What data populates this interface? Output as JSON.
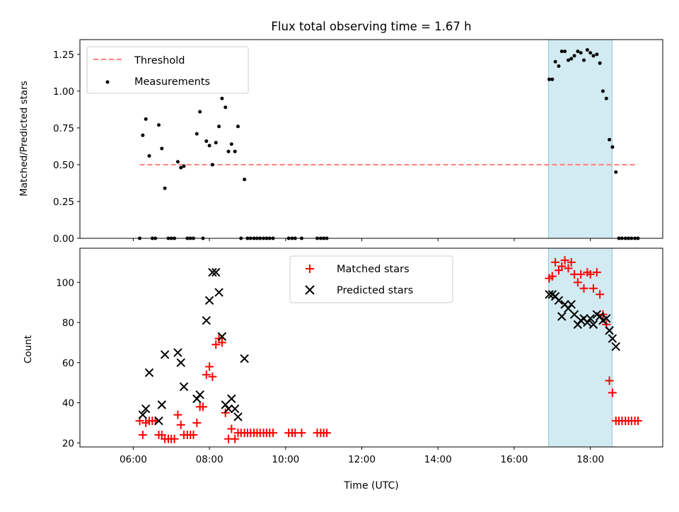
{
  "figure": {
    "title": "Flux total observing time = 1.67 h",
    "xlabel": "Time (UTC)",
    "highlight_span_hours": [
      16.9,
      18.57
    ],
    "highlight_color": "#add8e6"
  },
  "chart_data": [
    {
      "type": "scatter",
      "title": "Flux total observing time = 1.67 h",
      "xlabel": "",
      "ylabel": "Matched/Predicted stars",
      "xlim_hours": [
        4.6,
        19.9
      ],
      "ylim": [
        0,
        1.35
      ],
      "yticks": [
        0.0,
        0.25,
        0.5,
        0.75,
        1.0,
        1.25
      ],
      "yticklabels": [
        "0.00",
        "0.25",
        "0.50",
        "0.75",
        "1.00",
        "1.25"
      ],
      "legend_position": "upper-left",
      "threshold": {
        "name": "Threshold",
        "value": 0.5,
        "x_range": [
          6.17,
          19.25
        ],
        "color": "#ff7f7f",
        "style": "dashed"
      },
      "series": [
        {
          "name": "Measurements",
          "color": "#000000",
          "marker": "dot",
          "points": [
            [
              6.17,
              0.0
            ],
            [
              6.25,
              0.7
            ],
            [
              6.33,
              0.81
            ],
            [
              6.42,
              0.56
            ],
            [
              6.5,
              0.0
            ],
            [
              6.58,
              0.0
            ],
            [
              6.67,
              0.77
            ],
            [
              6.75,
              0.61
            ],
            [
              6.83,
              0.34
            ],
            [
              6.92,
              0.0
            ],
            [
              7.0,
              0.0
            ],
            [
              7.08,
              0.0
            ],
            [
              7.17,
              0.52
            ],
            [
              7.25,
              0.48
            ],
            [
              7.33,
              0.49
            ],
            [
              7.42,
              0.0
            ],
            [
              7.5,
              0.0
            ],
            [
              7.58,
              0.0
            ],
            [
              7.67,
              0.71
            ],
            [
              7.75,
              0.86
            ],
            [
              7.83,
              0.0
            ],
            [
              7.92,
              0.66
            ],
            [
              8.0,
              0.63
            ],
            [
              8.08,
              0.5
            ],
            [
              8.17,
              0.65
            ],
            [
              8.25,
              0.76
            ],
            [
              8.33,
              0.95
            ],
            [
              8.42,
              0.89
            ],
            [
              8.5,
              0.59
            ],
            [
              8.58,
              0.64
            ],
            [
              8.67,
              0.59
            ],
            [
              8.75,
              0.76
            ],
            [
              8.83,
              0.0
            ],
            [
              8.92,
              0.4
            ],
            [
              9.0,
              0.0
            ],
            [
              9.08,
              0.0
            ],
            [
              9.17,
              0.0
            ],
            [
              9.25,
              0.0
            ],
            [
              9.33,
              0.0
            ],
            [
              9.42,
              0.0
            ],
            [
              9.5,
              0.0
            ],
            [
              9.58,
              0.0
            ],
            [
              9.67,
              0.0
            ],
            [
              10.08,
              0.0
            ],
            [
              10.17,
              0.0
            ],
            [
              10.25,
              0.0
            ],
            [
              10.42,
              0.0
            ],
            [
              10.83,
              0.0
            ],
            [
              10.92,
              0.0
            ],
            [
              11.0,
              0.0
            ],
            [
              11.08,
              0.0
            ],
            [
              16.92,
              1.08
            ],
            [
              17.0,
              1.08
            ],
            [
              17.08,
              1.2
            ],
            [
              17.17,
              1.17
            ],
            [
              17.25,
              1.27
            ],
            [
              17.33,
              1.27
            ],
            [
              17.42,
              1.21
            ],
            [
              17.5,
              1.22
            ],
            [
              17.58,
              1.24
            ],
            [
              17.67,
              1.27
            ],
            [
              17.75,
              1.26
            ],
            [
              17.83,
              1.21
            ],
            [
              17.92,
              1.28
            ],
            [
              18.0,
              1.26
            ],
            [
              18.08,
              1.24
            ],
            [
              18.17,
              1.25
            ],
            [
              18.25,
              1.19
            ],
            [
              18.33,
              1.0
            ],
            [
              18.42,
              0.95
            ],
            [
              18.5,
              0.67
            ],
            [
              18.58,
              0.62
            ],
            [
              18.67,
              0.45
            ],
            [
              18.75,
              0.0
            ],
            [
              18.83,
              0.0
            ],
            [
              18.92,
              0.0
            ],
            [
              19.0,
              0.0
            ],
            [
              19.08,
              0.0
            ],
            [
              19.17,
              0.0
            ],
            [
              19.25,
              0.0
            ]
          ]
        }
      ]
    },
    {
      "type": "scatter",
      "xlabel": "Time (UTC)",
      "ylabel": "Count",
      "xlim_hours": [
        4.6,
        19.9
      ],
      "ylim": [
        18,
        117
      ],
      "yticks": [
        20,
        40,
        60,
        80,
        100
      ],
      "yticklabels": [
        "20",
        "40",
        "60",
        "80",
        "100"
      ],
      "xticks_hours": [
        6,
        8,
        10,
        12,
        14,
        16,
        18
      ],
      "xticklabels": [
        "06:00",
        "08:00",
        "10:00",
        "12:00",
        "14:00",
        "16:00",
        "18:00"
      ],
      "legend_position": "upper-center",
      "series": [
        {
          "name": "Matched stars",
          "color": "#ff0000",
          "marker": "plus",
          "points": [
            [
              6.17,
              31
            ],
            [
              6.25,
              24
            ],
            [
              6.33,
              30
            ],
            [
              6.42,
              31
            ],
            [
              6.5,
              31
            ],
            [
              6.58,
              31
            ],
            [
              6.67,
              24
            ],
            [
              6.75,
              24
            ],
            [
              6.83,
              22
            ],
            [
              6.92,
              22
            ],
            [
              7.0,
              22
            ],
            [
              7.08,
              22
            ],
            [
              7.17,
              34
            ],
            [
              7.25,
              29
            ],
            [
              7.33,
              24
            ],
            [
              7.42,
              24
            ],
            [
              7.5,
              24
            ],
            [
              7.58,
              24
            ],
            [
              7.67,
              30
            ],
            [
              7.75,
              38
            ],
            [
              7.83,
              38
            ],
            [
              7.92,
              54
            ],
            [
              8.0,
              58
            ],
            [
              8.08,
              53
            ],
            [
              8.17,
              69
            ],
            [
              8.25,
              72
            ],
            [
              8.33,
              70
            ],
            [
              8.42,
              35
            ],
            [
              8.5,
              22
            ],
            [
              8.58,
              27
            ],
            [
              8.67,
              22
            ],
            [
              8.75,
              25
            ],
            [
              8.83,
              25
            ],
            [
              8.92,
              25
            ],
            [
              9.0,
              25
            ],
            [
              9.08,
              25
            ],
            [
              9.17,
              25
            ],
            [
              9.25,
              25
            ],
            [
              9.33,
              25
            ],
            [
              9.42,
              25
            ],
            [
              9.5,
              25
            ],
            [
              9.58,
              25
            ],
            [
              9.67,
              25
            ],
            [
              10.08,
              25
            ],
            [
              10.17,
              25
            ],
            [
              10.25,
              25
            ],
            [
              10.42,
              25
            ],
            [
              10.83,
              25
            ],
            [
              10.92,
              25
            ],
            [
              11.0,
              25
            ],
            [
              11.08,
              25
            ],
            [
              16.92,
              102
            ],
            [
              17.0,
              103
            ],
            [
              17.08,
              110
            ],
            [
              17.17,
              106
            ],
            [
              17.25,
              108
            ],
            [
              17.33,
              111
            ],
            [
              17.42,
              107
            ],
            [
              17.5,
              110
            ],
            [
              17.58,
              104
            ],
            [
              17.67,
              100
            ],
            [
              17.75,
              104
            ],
            [
              17.83,
              97
            ],
            [
              17.92,
              105
            ],
            [
              18.0,
              104
            ],
            [
              18.08,
              97
            ],
            [
              18.17,
              105
            ],
            [
              18.25,
              94
            ],
            [
              18.33,
              84
            ],
            [
              18.42,
              79
            ],
            [
              18.5,
              51
            ],
            [
              18.58,
              45
            ],
            [
              18.67,
              31
            ],
            [
              18.75,
              31
            ],
            [
              18.83,
              31
            ],
            [
              18.92,
              31
            ],
            [
              19.0,
              31
            ],
            [
              19.08,
              31
            ],
            [
              19.17,
              31
            ],
            [
              19.25,
              31
            ]
          ]
        },
        {
          "name": "Predicted stars",
          "color": "#000000",
          "marker": "x",
          "points": [
            [
              6.25,
              34
            ],
            [
              6.33,
              37
            ],
            [
              6.42,
              55
            ],
            [
              6.67,
              31
            ],
            [
              6.75,
              39
            ],
            [
              6.83,
              64
            ],
            [
              7.17,
              65
            ],
            [
              7.25,
              60
            ],
            [
              7.33,
              48
            ],
            [
              7.67,
              42
            ],
            [
              7.75,
              44
            ],
            [
              7.92,
              81
            ],
            [
              8.0,
              91
            ],
            [
              8.08,
              105
            ],
            [
              8.17,
              105
            ],
            [
              8.25,
              95
            ],
            [
              8.33,
              73
            ],
            [
              8.42,
              39
            ],
            [
              8.5,
              37
            ],
            [
              8.58,
              42
            ],
            [
              8.67,
              37
            ],
            [
              8.75,
              33
            ],
            [
              8.92,
              62
            ],
            [
              16.92,
              94
            ],
            [
              17.0,
              94
            ],
            [
              17.08,
              93
            ],
            [
              17.17,
              91
            ],
            [
              17.25,
              83
            ],
            [
              17.33,
              89
            ],
            [
              17.42,
              87
            ],
            [
              17.5,
              89
            ],
            [
              17.58,
              84
            ],
            [
              17.67,
              79
            ],
            [
              17.75,
              81
            ],
            [
              17.83,
              82
            ],
            [
              17.92,
              80
            ],
            [
              18.0,
              82
            ],
            [
              18.08,
              79
            ],
            [
              18.17,
              84
            ],
            [
              18.25,
              83
            ],
            [
              18.33,
              81
            ],
            [
              18.42,
              82
            ],
            [
              18.5,
              76
            ],
            [
              18.58,
              72
            ],
            [
              18.67,
              68
            ]
          ]
        }
      ]
    }
  ]
}
